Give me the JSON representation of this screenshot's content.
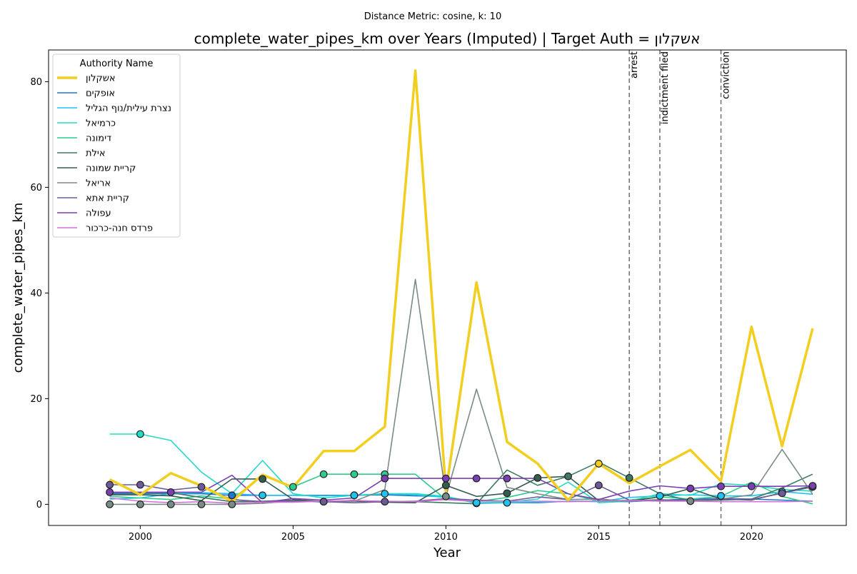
{
  "chart_data": {
    "type": "line",
    "suptitle": "Distance Metric: cosine, k: 10",
    "title": "complete_water_pipes_km over Years (Imputed) | Target Auth = אשקלון",
    "xlabel": "Year",
    "ylabel": "complete_water_pipes_km",
    "xlim": [
      1997.0,
      2023.1
    ],
    "ylim": [
      -4.0,
      86.0
    ],
    "xticks": [
      2000,
      2005,
      2010,
      2015,
      2020
    ],
    "yticks": [
      0,
      20,
      40,
      60,
      80
    ],
    "legend": {
      "title": "Authority Name",
      "placement": "top-left"
    },
    "events": [
      {
        "year": 2016,
        "label": "arrest"
      },
      {
        "year": 2017,
        "label": "indictment filed"
      },
      {
        "year": 2019,
        "label": "conviction"
      }
    ],
    "years": [
      1999,
      2000,
      2001,
      2002,
      2003,
      2004,
      2005,
      2006,
      2007,
      2008,
      2009,
      2010,
      2011,
      2012,
      2013,
      2014,
      2015,
      2016,
      2017,
      2018,
      2019,
      2020,
      2021,
      2022
    ],
    "series": [
      {
        "name": "אשקלון",
        "color": "#f2ce1e",
        "target": true,
        "values": [
          4.7,
          1.8,
          5.9,
          3.5,
          0.6,
          5.6,
          3.2,
          10.1,
          10.1,
          14.7,
          82.1,
          2.5,
          42.0,
          11.8,
          7.7,
          0.8,
          7.7,
          4.0,
          7.2,
          10.3,
          4.4,
          33.6,
          11.0,
          33.3
        ],
        "imputed": [
          16
        ]
      },
      {
        "name": "אופקים",
        "color": "#1f77d4",
        "target": false,
        "values": [
          2.0,
          2.0,
          2.0,
          2.0,
          1.7,
          1.7,
          1.7,
          1.7,
          1.7,
          1.8,
          1.6,
          1.5,
          0.2,
          0.3,
          0.3,
          0.6,
          0.6,
          0.5,
          0.8,
          1.0,
          1.1,
          1.0,
          0.8,
          0.6
        ],
        "imputed": [
          4,
          8,
          12
        ]
      },
      {
        "name": "נצרת עילית/נוף הגליל",
        "color": "#1fc3f0",
        "target": false,
        "values": [
          1.0,
          1.2,
          2.0,
          2.2,
          2.0,
          1.7,
          1.7,
          1.6,
          1.7,
          2.0,
          1.8,
          1.3,
          0.3,
          0.3,
          0.4,
          0.6,
          0.5,
          1.3,
          1.6,
          1.8,
          1.6,
          1.6,
          2.4,
          1.9
        ],
        "imputed": [
          5,
          8,
          9,
          12,
          13,
          18,
          20,
          22
        ]
      },
      {
        "name": "כרמיאל",
        "color": "#22dcc5",
        "target": false,
        "values": [
          13.3,
          13.3,
          12.1,
          6.1,
          2.0,
          8.3,
          2.0,
          1.2,
          1.7,
          2.0,
          2.0,
          1.5,
          0.3,
          0.4,
          1.0,
          4.2,
          0.3,
          0.6,
          2.0,
          1.7,
          3.9,
          3.6,
          2.8,
          2.5
        ],
        "imputed": [
          1
        ]
      },
      {
        "name": "דימונה",
        "color": "#2ecc8c",
        "target": false,
        "values": [
          1.5,
          1.2,
          0.9,
          1.6,
          1.0,
          5.4,
          3.3,
          5.7,
          5.7,
          5.7,
          5.7,
          0.9,
          0.5,
          1.3,
          2.6,
          2.0,
          0.6,
          0.8,
          1.4,
          1.0,
          1.5,
          4.2,
          1.5,
          0.1
        ],
        "imputed": [
          6,
          7,
          8,
          9
        ]
      },
      {
        "name": "אילת",
        "color": "#3d7a64",
        "target": false,
        "values": [
          2.2,
          2.2,
          2.2,
          1.3,
          0.5,
          0.6,
          0.8,
          0.4,
          0.8,
          0.4,
          0.5,
          0.3,
          0.1,
          6.5,
          3.6,
          5.3,
          8.0,
          5.0,
          2.0,
          0.7,
          0.8,
          1.0,
          3.1,
          5.7
        ],
        "imputed": [
          15,
          17
        ]
      },
      {
        "name": "קריית שמונה",
        "color": "#365e4e",
        "target": false,
        "values": [
          1.8,
          1.8,
          1.6,
          0.7,
          4.8,
          4.8,
          0.9,
          0.5,
          0.6,
          0.4,
          0.3,
          3.6,
          1.5,
          2.1,
          5.0,
          5.3,
          0.7,
          0.6,
          1.4,
          3.0,
          1.0,
          0.8,
          2.2,
          3.5
        ],
        "imputed": [
          5,
          7,
          11,
          13,
          14
        ]
      },
      {
        "name": "אריאל",
        "color": "#7a8c86",
        "target": false,
        "values": [
          0.0,
          0.0,
          0.0,
          0.0,
          0.0,
          0.2,
          0.6,
          0.6,
          0.6,
          2.8,
          42.6,
          1.5,
          21.8,
          3.2,
          2.0,
          0.9,
          1.0,
          0.6,
          0.9,
          0.6,
          1.0,
          1.8,
          10.4,
          1.9
        ],
        "imputed": [
          0,
          1,
          2,
          3,
          4,
          11,
          19
        ]
      },
      {
        "name": "קריית אתא",
        "color": "#6e5a98",
        "target": false,
        "values": [
          3.7,
          3.7,
          2.7,
          3.3,
          0.9,
          0.5,
          0.6,
          0.5,
          0.3,
          0.5,
          0.6,
          1.1,
          0.8,
          0.6,
          1.4,
          0.9,
          3.6,
          0.8,
          0.7,
          0.8,
          1.0,
          0.9,
          2.1,
          3.3
        ],
        "imputed": [
          0,
          1,
          3,
          7,
          9,
          16,
          22,
          23
        ]
      },
      {
        "name": "עפולה",
        "color": "#7a3fb2",
        "target": false,
        "values": [
          2.3,
          2.3,
          2.3,
          2.3,
          5.5,
          0.3,
          1.1,
          0.8,
          1.2,
          4.9,
          4.9,
          4.9,
          4.9,
          4.9,
          4.9,
          2.0,
          0.9,
          2.5,
          3.5,
          3.0,
          3.4,
          3.4,
          3.4,
          3.5
        ],
        "imputed": [
          0,
          2,
          9,
          11,
          12,
          13,
          19,
          20,
          21,
          23
        ]
      },
      {
        "name": "פרדס חנה-כרכור",
        "color": "#d371d8",
        "target": false,
        "values": [
          1.2,
          0.6,
          0.3,
          0.5,
          0.2,
          0.4,
          0.4,
          0.6,
          0.7,
          0.6,
          0.5,
          0.9,
          0.6,
          0.6,
          0.6,
          0.5,
          0.6,
          0.7,
          0.6,
          0.6,
          0.5,
          0.5,
          0.5,
          0.6
        ],
        "imputed": []
      }
    ]
  }
}
